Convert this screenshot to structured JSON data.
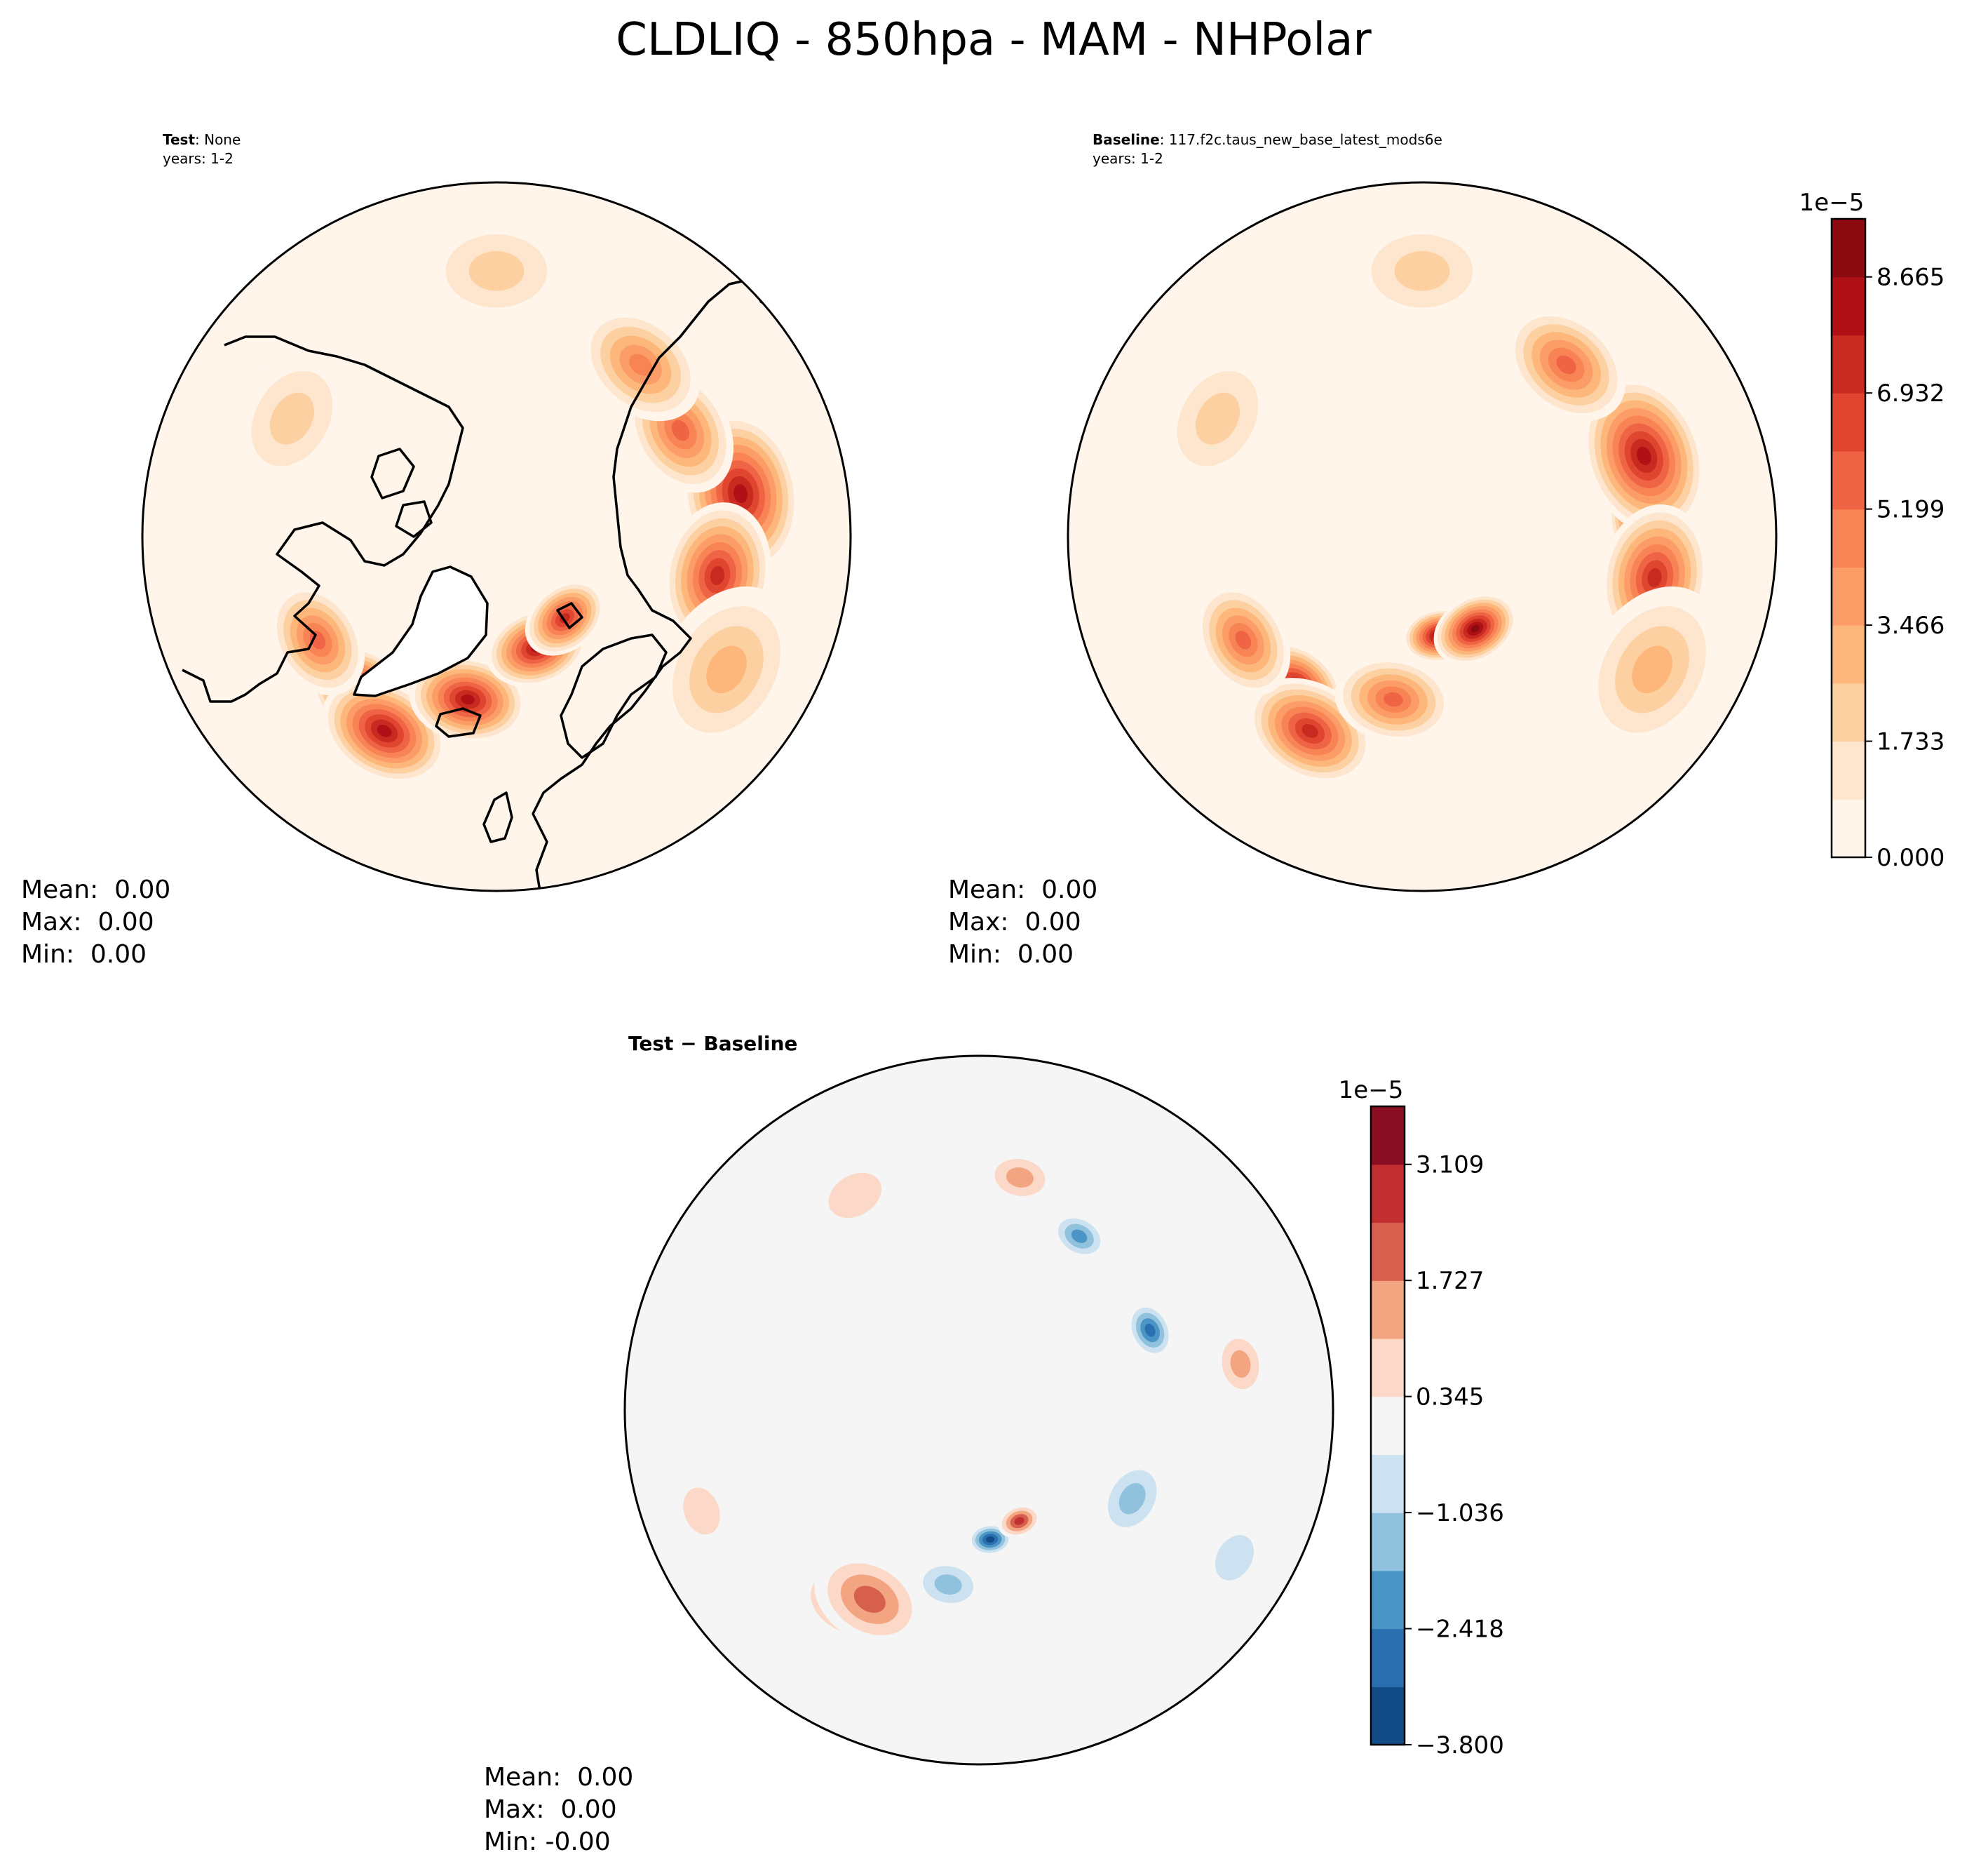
{
  "title": "CLDLIQ - 850hpa - MAM - NHPolar",
  "chart_data": [
    {
      "type": "filled-contour-map",
      "projection": "North Polar Stereographic",
      "label_bold": "Test",
      "label_rest": ": None",
      "years": "years: 1-2",
      "stats": [
        "Mean:  0.00",
        "Max:  0.00",
        "Min:  0.00"
      ],
      "levels": [
        0.0,
        0.866,
        1.733,
        2.599,
        3.466,
        4.332,
        5.199,
        6.065,
        6.932,
        7.798,
        8.665,
        9.531
      ],
      "level_scale": "1e−5",
      "features": [
        {
          "lon": 100,
          "lat": 48,
          "spread": 11,
          "level": 8
        },
        {
          "lon": 80,
          "lat": 52,
          "spread": 10,
          "level": 7
        },
        {
          "lon": 120,
          "lat": 54,
          "spread": 9,
          "level": 6
        },
        {
          "lon": 140,
          "lat": 52,
          "spread": 9,
          "level": 5
        },
        {
          "lon": -40,
          "lat": 55,
          "spread": 8,
          "level": 9
        },
        {
          "lon": -30,
          "lat": 52,
          "spread": 9,
          "level": 8
        },
        {
          "lon": -10,
          "lat": 62,
          "spread": 8,
          "level": 8
        },
        {
          "lon": 20,
          "lat": 70,
          "spread": 7,
          "level": 8
        },
        {
          "lon": 40,
          "lat": 72,
          "spread": 6,
          "level": 7
        },
        {
          "lon": -60,
          "lat": 55,
          "spread": 8,
          "level": 6
        },
        {
          "lon": 180,
          "lat": 45,
          "spread": 10,
          "level": 2
        },
        {
          "lon": -120,
          "lat": 50,
          "spread": 10,
          "level": 2
        },
        {
          "lon": 60,
          "lat": 45,
          "spread": 12,
          "level": 3
        }
      ]
    },
    {
      "type": "filled-contour-map",
      "projection": "North Polar Stereographic",
      "label_bold": "Baseline",
      "label_rest": ": 117.f2c.taus_new_base_latest_mods6e",
      "years": "years: 1-2",
      "stats": [
        "Mean:  0.00",
        "Max:  0.00",
        "Min:  0.00"
      ],
      "levels": [
        0.0,
        0.866,
        1.733,
        2.599,
        3.466,
        4.332,
        5.199,
        6.065,
        6.932,
        7.798,
        8.665,
        9.531
      ],
      "level_scale": "1e−5",
      "features": [
        {
          "lon": 95,
          "lat": 52,
          "spread": 7,
          "level": 10
        },
        {
          "lon": 110,
          "lat": 50,
          "spread": 11,
          "level": 8
        },
        {
          "lon": 80,
          "lat": 50,
          "spread": 10,
          "level": 7
        },
        {
          "lon": 140,
          "lat": 52,
          "spread": 9,
          "level": 6
        },
        {
          "lon": -40,
          "lat": 57,
          "spread": 7,
          "level": 8
        },
        {
          "lon": -30,
          "lat": 52,
          "spread": 9,
          "level": 7
        },
        {
          "lon": 10,
          "lat": 73,
          "spread": 5,
          "level": 10
        },
        {
          "lon": 30,
          "lat": 72,
          "spread": 6,
          "level": 9
        },
        {
          "lon": -10,
          "lat": 62,
          "spread": 8,
          "level": 6
        },
        {
          "lon": -60,
          "lat": 55,
          "spread": 8,
          "level": 6
        },
        {
          "lon": 180,
          "lat": 45,
          "spread": 10,
          "level": 2
        },
        {
          "lon": -120,
          "lat": 50,
          "spread": 10,
          "level": 2
        },
        {
          "lon": 60,
          "lat": 45,
          "spread": 12,
          "level": 3
        }
      ]
    },
    {
      "type": "filled-contour-map",
      "projection": "North Polar Stereographic",
      "label_bold": "Test − Baseline",
      "label_rest": "",
      "years": "",
      "stats": [
        "Mean:  0.00",
        "Max:  0.00",
        "Min: -0.00"
      ],
      "levels": [
        -3.8,
        -3.109,
        -2.418,
        -1.727,
        -1.036,
        -0.345,
        0.345,
        1.036,
        1.727,
        2.418,
        3.109,
        3.8
      ],
      "level_scale": "1e−5",
      "features": [
        {
          "lon": -35,
          "lat": 50,
          "spread": 6,
          "level": 2.8
        },
        {
          "lon": -30,
          "lat": 53,
          "spread": 8,
          "level": 1.8
        },
        {
          "lon": 5,
          "lat": 68,
          "spread": 3,
          "level": -3.6
        },
        {
          "lon": 20,
          "lat": 70,
          "spread": 3,
          "level": 2.8
        },
        {
          "lon": 115,
          "lat": 58,
          "spread": 4,
          "level": -2.5
        },
        {
          "lon": 150,
          "lat": 56,
          "spread": 4,
          "level": -2.2
        },
        {
          "lon": 100,
          "lat": 45,
          "spread": 5,
          "level": 1.5
        },
        {
          "lon": 170,
          "lat": 50,
          "spread": 5,
          "level": 1.2
        },
        {
          "lon": 60,
          "lat": 60,
          "spread": 6,
          "level": -1.3
        },
        {
          "lon": -10,
          "lat": 60,
          "spread": 5,
          "level": -1.4
        },
        {
          "lon": -70,
          "lat": 40,
          "spread": 6,
          "level": 0.8
        },
        {
          "lon": -150,
          "lat": 48,
          "spread": 7,
          "level": 0.7
        },
        {
          "lon": 60,
          "lat": 40,
          "spread": 6,
          "level": -1.0
        }
      ]
    }
  ],
  "colorbars": [
    {
      "exponent": "1e−5",
      "tick_labels": [
        "0.000",
        "1.733",
        "3.466",
        "5.199",
        "6.932",
        "8.665"
      ],
      "colors": [
        "#fff5eb",
        "#fee6ce",
        "#fdd0a2",
        "#fdb77b",
        "#fc9d67",
        "#f88455",
        "#ef6445",
        "#e0452f",
        "#c82a1f",
        "#b01116",
        "#8c0b0f"
      ]
    },
    {
      "exponent": "1e−5",
      "tick_labels": [
        "−3.800",
        "−2.418",
        "−1.036",
        "0.345",
        "1.727",
        "3.109"
      ],
      "colors": [
        "#134b87",
        "#2a70b0",
        "#4a95c5",
        "#90c1dd",
        "#cde2f0",
        "#f5f5f5",
        "#fbd8c7",
        "#f3a582",
        "#d6604d",
        "#c12f33",
        "#8a0e23"
      ]
    }
  ]
}
